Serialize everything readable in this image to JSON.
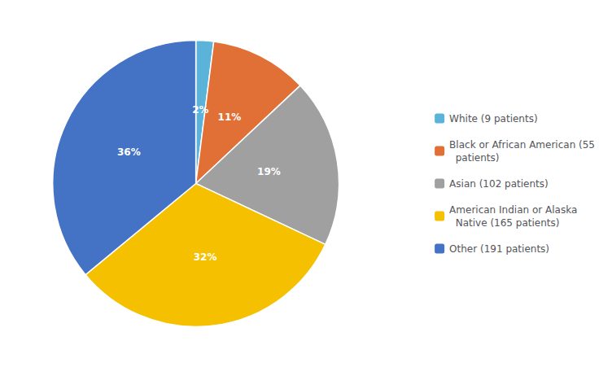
{
  "chart_data": {
    "type": "pie",
    "categories": [
      "White (9 patients)",
      "Black or African American (55\n  patients)",
      "Asian (102 patients)",
      "American Indian or Alaska\n  Native (165 patients)",
      "Other (191 patients)"
    ],
    "values": [
      2,
      11,
      19,
      32,
      36
    ],
    "value_labels": [
      "2%",
      "11%",
      "19%",
      "32%",
      "36%"
    ],
    "colors": [
      "#5bb3d9",
      "#e07035",
      "#a0a0a0",
      "#f5c000",
      "#4472c4"
    ],
    "data_labels": true,
    "legend": "right"
  }
}
